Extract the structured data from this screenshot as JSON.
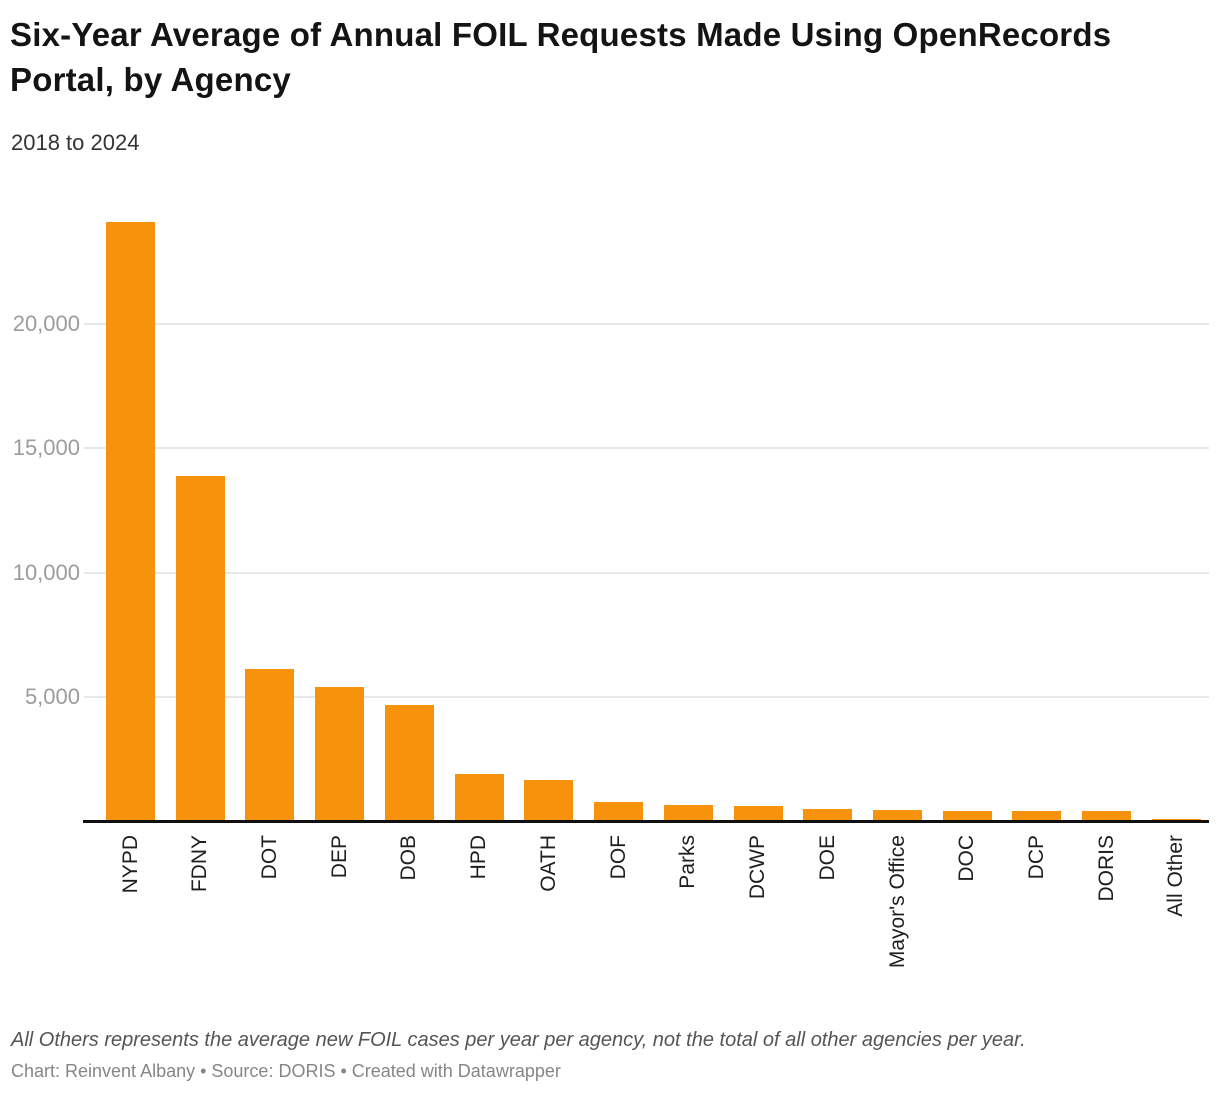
{
  "header": {
    "title": "Six-Year Average of Annual FOIL Requests Made Using OpenRecords Portal, by Agency",
    "subtitle": "2018 to 2024"
  },
  "footer": {
    "note": "All Others represents the average new FOIL cases per year per agency, not the total of all other agencies per year.",
    "credit": "Chart: Reinvent Albany • Source: DORIS • Created with Datawrapper"
  },
  "colors": {
    "bar": "#f7920d",
    "axis_line": "#101010",
    "gridline": "#e8e8e8",
    "y_tick_label": "#9c9c9c",
    "category_label": "#1f1f1f"
  },
  "chart_data": {
    "type": "bar",
    "title": "Six-Year Average of Annual FOIL Requests Made Using OpenRecords Portal, by Agency",
    "subtitle": "2018 to 2024",
    "categories": [
      "NYPD",
      "FDNY",
      "DOT",
      "DEP",
      "DOB",
      "HPD",
      "OATH",
      "DOF",
      "Parks",
      "DCWP",
      "DOE",
      "Mayor's Office",
      "DOC",
      "DCP",
      "DORIS",
      "All Other"
    ],
    "values": [
      24100,
      13900,
      6100,
      5400,
      4650,
      1900,
      1650,
      750,
      630,
      590,
      470,
      430,
      390,
      390,
      390,
      100
    ],
    "xlabel": "",
    "ylabel": "",
    "ylim": [
      0,
      24600
    ],
    "yticks": [
      5000,
      10000,
      15000,
      20000
    ],
    "ytick_labels": [
      "5,000",
      "10,000",
      "15,000",
      "20,000"
    ],
    "grid": "horizontal-only",
    "legend": "none",
    "bar_color": "#f7920d",
    "annotations": []
  }
}
